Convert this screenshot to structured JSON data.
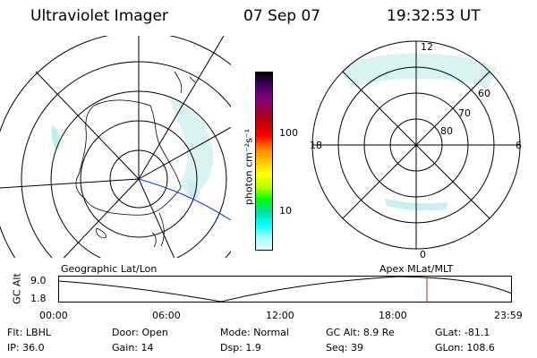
{
  "header": {
    "title": "Ultraviolet Imager",
    "date": "07 Sep 07",
    "time": "19:32:53 UT"
  },
  "left_map": {
    "label": "Geographic Lat/Lon"
  },
  "colorbar": {
    "axis_label": "photon cm⁻²s⁻¹",
    "ticks": [
      "100",
      "10"
    ],
    "colors": [
      "#e6ffff",
      "#a0ffff",
      "#00ffff",
      "#00e0a0",
      "#00ff00",
      "#c0ff00",
      "#ffff00",
      "#ffc000",
      "#ff8000",
      "#ff0000",
      "#c00000",
      "#a00040",
      "#800080",
      "#400060",
      "#000000"
    ]
  },
  "right_map": {
    "label": "Apex MLat/MLT",
    "lat_labels": [
      "60",
      "70",
      "80"
    ],
    "mlt_labels": {
      "top": "12",
      "left": "18",
      "right": "6",
      "bottom": "0"
    }
  },
  "altitude_plot": {
    "ylabel": "GC Alt",
    "yticks": [
      "9.0",
      "1.8"
    ],
    "xticks": [
      "00:00",
      "06:00",
      "12:00",
      "18:00",
      "23:59"
    ],
    "current_time_marker": "19:32:53"
  },
  "status": {
    "row1": [
      {
        "label": "Flt:",
        "value": "LBHL"
      },
      {
        "label": "Door:",
        "value": "Open"
      },
      {
        "label": "Mode:",
        "value": "Normal"
      },
      {
        "label": "GC Alt:",
        "value": "8.9 Re"
      },
      {
        "label": "GLat:",
        "value": "-81.1"
      }
    ],
    "row2": [
      {
        "label": "IP:",
        "value": "36.0"
      },
      {
        "label": "Gain:",
        "value": "14"
      },
      {
        "label": "Dsp:",
        "value": "1.9"
      },
      {
        "label": "Seq:",
        "value": "39"
      },
      {
        "label": "GLon:",
        "value": "108.6"
      }
    ]
  }
}
